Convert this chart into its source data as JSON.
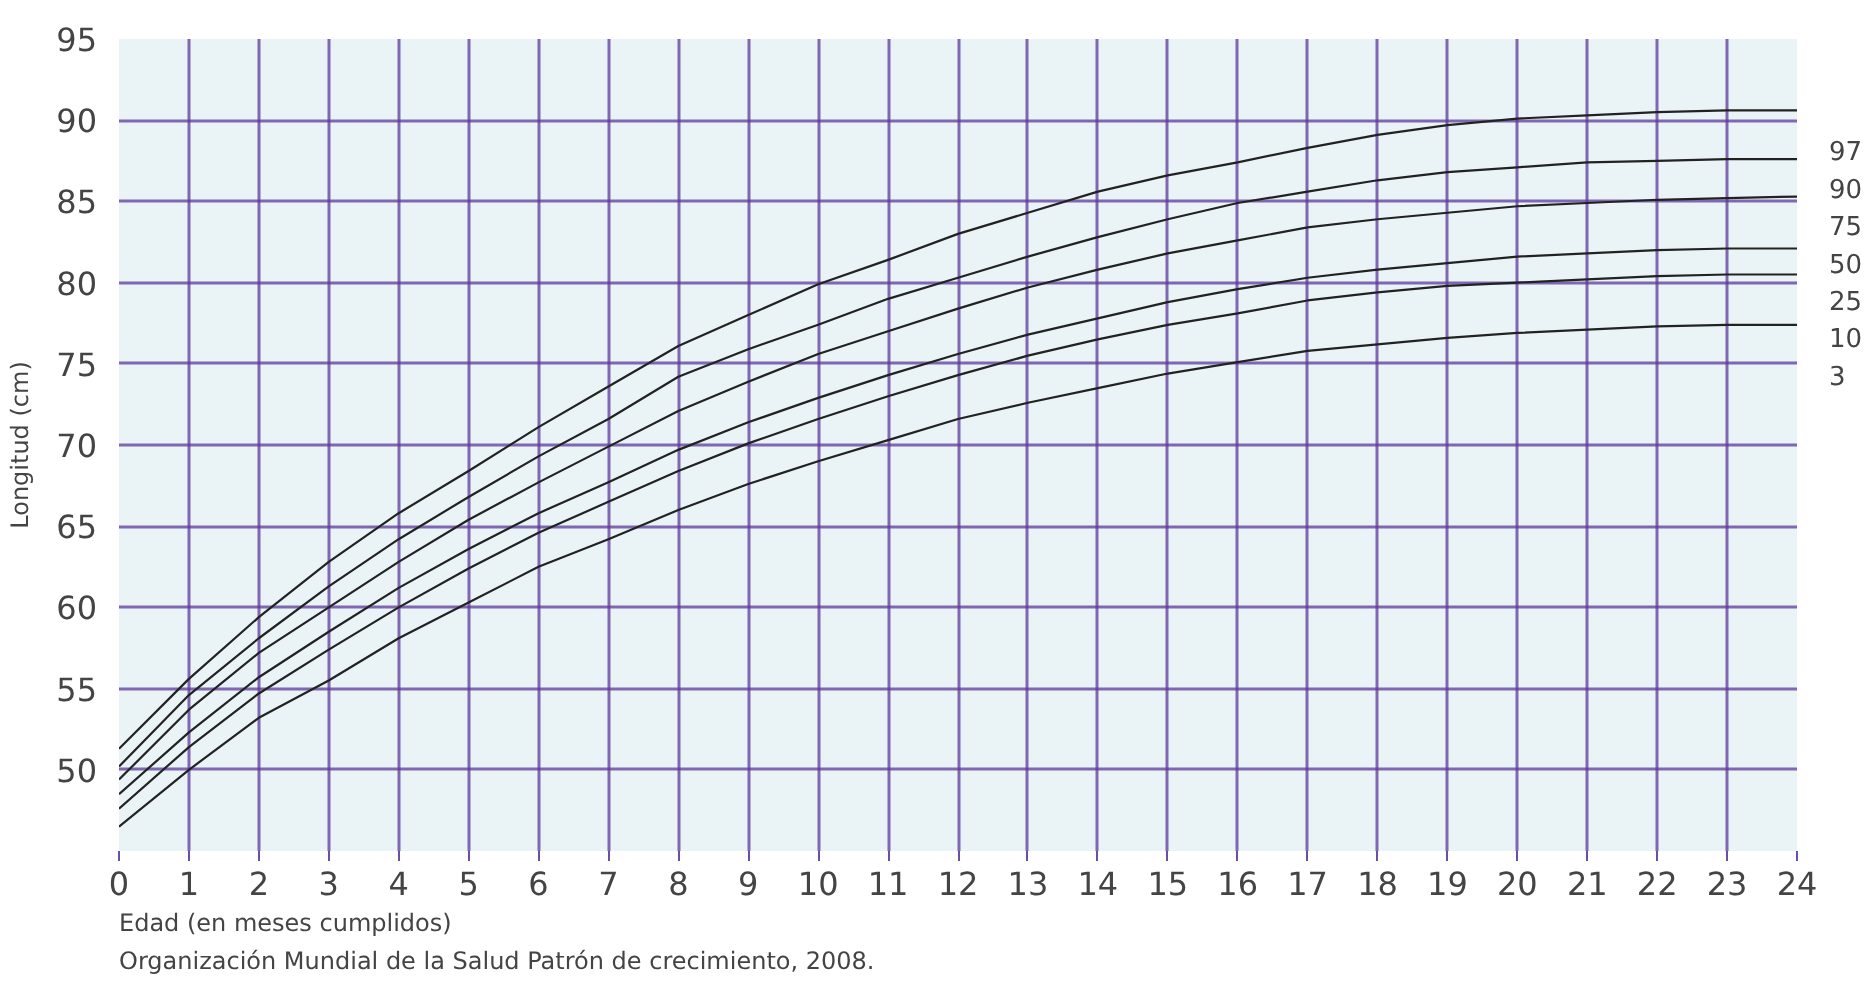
{
  "chart_data": {
    "type": "line",
    "xlabel": "Edad (en meses cumplidos)",
    "ylabel": "Longitud (cm)",
    "annotations": [
      "Organización Mundial de la Salud Patrón de crecimiento, 2008."
    ],
    "x": [
      0,
      1,
      2,
      3,
      4,
      5,
      6,
      7,
      8,
      9,
      10,
      11,
      12,
      13,
      14,
      15,
      16,
      17,
      18,
      19,
      20,
      21,
      22,
      23,
      24
    ],
    "xlim": [
      0,
      24
    ],
    "xticks": [
      0,
      1,
      2,
      3,
      4,
      5,
      6,
      7,
      8,
      9,
      10,
      11,
      12,
      13,
      14,
      15,
      16,
      17,
      18,
      19,
      20,
      21,
      22,
      23,
      24
    ],
    "ylim": [
      45,
      95
    ],
    "yticks": [
      50,
      55,
      60,
      65,
      70,
      75,
      80,
      85,
      90,
      95
    ],
    "grid": true,
    "series": [
      {
        "name": "97",
        "color": "#222222",
        "values": [
          51.3,
          55.6,
          59.4,
          62.8,
          65.8,
          68.4,
          71.1,
          73.6,
          76.1,
          78.0,
          79.9,
          81.4,
          83.0,
          84.3,
          85.6,
          86.6,
          87.4,
          88.3,
          89.1,
          89.7,
          90.1,
          90.3,
          90.5,
          90.6,
          90.6
        ]
      },
      {
        "name": "90",
        "color": "#222222",
        "values": [
          50.2,
          54.6,
          58.1,
          61.3,
          64.2,
          66.8,
          69.3,
          71.6,
          74.2,
          75.9,
          77.4,
          79.0,
          80.3,
          81.6,
          82.8,
          83.9,
          84.9,
          85.6,
          86.3,
          86.8,
          87.1,
          87.4,
          87.5,
          87.6,
          87.6
        ]
      },
      {
        "name": "75",
        "color": "#222222",
        "values": [
          null,
          null,
          null,
          null,
          null,
          null,
          null,
          null,
          null,
          null,
          null,
          null,
          null,
          null,
          null,
          null,
          null,
          null,
          null,
          null,
          null,
          null,
          null,
          null,
          null
        ]
      },
      {
        "name": "50",
        "color": "#222222",
        "values": [
          49.4,
          53.7,
          57.2,
          60.0,
          62.8,
          65.4,
          67.7,
          69.9,
          72.1,
          73.9,
          75.6,
          77.0,
          78.4,
          79.7,
          80.8,
          81.8,
          82.6,
          83.4,
          83.9,
          84.3,
          84.7,
          84.9,
          85.1,
          85.2,
          85.3
        ]
      },
      {
        "name": "25",
        "color": "#222222",
        "values": [
          48.5,
          52.3,
          55.7,
          58.5,
          61.2,
          63.6,
          65.8,
          67.7,
          69.7,
          71.4,
          72.9,
          74.3,
          75.6,
          76.8,
          77.8,
          78.8,
          79.6,
          80.3,
          80.8,
          81.2,
          81.6,
          81.8,
          82.0,
          82.1,
          82.1
        ]
      },
      {
        "name": "10",
        "color": "#222222",
        "values": [
          47.6,
          51.4,
          54.7,
          57.4,
          60.0,
          62.4,
          64.6,
          66.5,
          68.4,
          70.1,
          71.6,
          73.0,
          74.3,
          75.5,
          76.5,
          77.4,
          78.1,
          78.9,
          79.4,
          79.8,
          80.0,
          80.2,
          80.4,
          80.5,
          80.5
        ]
      },
      {
        "name": "3",
        "color": "#222222",
        "values": [
          46.5,
          50.0,
          53.2,
          55.5,
          58.1,
          60.3,
          62.5,
          64.2,
          66.0,
          67.6,
          69.0,
          70.3,
          71.6,
          72.6,
          73.5,
          74.4,
          75.1,
          75.8,
          76.2,
          76.6,
          76.9,
          77.1,
          77.3,
          77.4,
          77.4
        ]
      }
    ]
  }
}
